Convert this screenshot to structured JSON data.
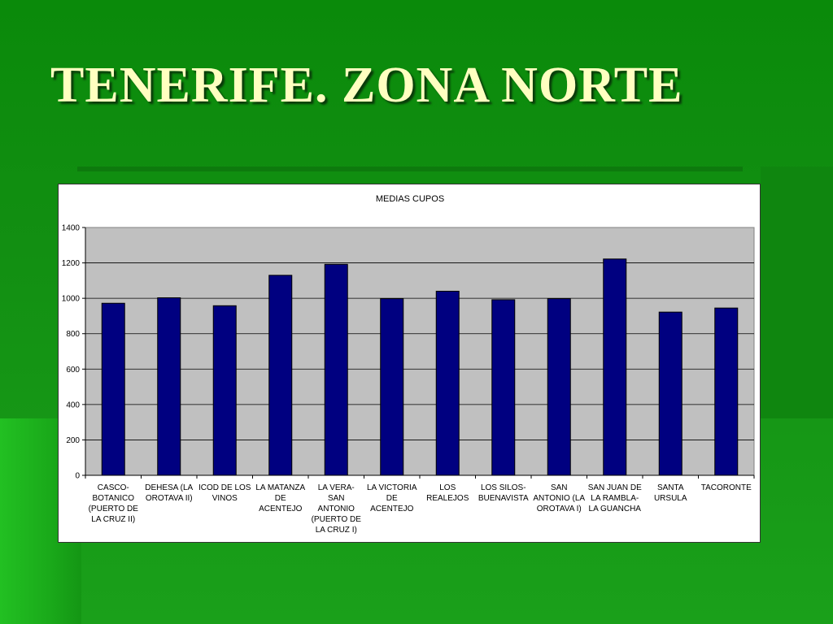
{
  "slide": {
    "title": "TENERIFE. ZONA NORTE"
  },
  "colors": {
    "bar": "#000080",
    "plot_bg": "#c0c0c0",
    "title_text": "#ffffc0"
  },
  "chart_data": {
    "type": "bar",
    "title": "MEDIAS CUPOS",
    "xlabel": "",
    "ylabel": "",
    "ylim": [
      0,
      1400
    ],
    "yticks": [
      0,
      200,
      400,
      600,
      800,
      1000,
      1200,
      1400
    ],
    "grid": true,
    "legend": "none",
    "categories": [
      "CASCO-BOTANICO (PUERTO DE LA CRUZ II)",
      "DEHESA (LA OROTAVA II)",
      "ICOD DE LOS VINOS",
      "LA MATANZA DE ACENTEJO",
      "LA VERA-SAN ANTONIO (PUERTO DE LA CRUZ I)",
      "LA VICTORIA DE ACENTEJO",
      "LOS REALEJOS",
      "LOS SILOS-BUENAVISTA",
      "SAN ANTONIO (LA OROTAVA I)",
      "SAN JUAN DE LA RAMBLA-LA GUANCHA",
      "SANTA URSULA",
      "TACORONTE"
    ],
    "category_lines": [
      [
        "CASCO-",
        "BOTANICO",
        "(PUERTO DE",
        "LA CRUZ II)"
      ],
      [
        "DEHESA (LA",
        "OROTAVA II)"
      ],
      [
        "ICOD DE LOS",
        "VINOS"
      ],
      [
        "LA MATANZA",
        "DE",
        "ACENTEJO"
      ],
      [
        "LA VERA-",
        "SAN",
        "ANTONIO",
        "(PUERTO DE",
        "LA CRUZ I)"
      ],
      [
        "LA VICTORIA",
        "DE",
        "ACENTEJO"
      ],
      [
        "LOS",
        "REALEJOS"
      ],
      [
        "LOS SILOS-",
        "BUENAVISTA"
      ],
      [
        "SAN",
        "ANTONIO (LA",
        "OROTAVA I)"
      ],
      [
        "SAN JUAN DE",
        "LA RAMBLA-",
        "LA GUANCHA"
      ],
      [
        "SANTA",
        "URSULA"
      ],
      [
        "TACORONTE"
      ]
    ],
    "values": [
      972,
      1003,
      958,
      1130,
      1192,
      998,
      1040,
      992,
      998,
      1222,
      922,
      945
    ]
  }
}
